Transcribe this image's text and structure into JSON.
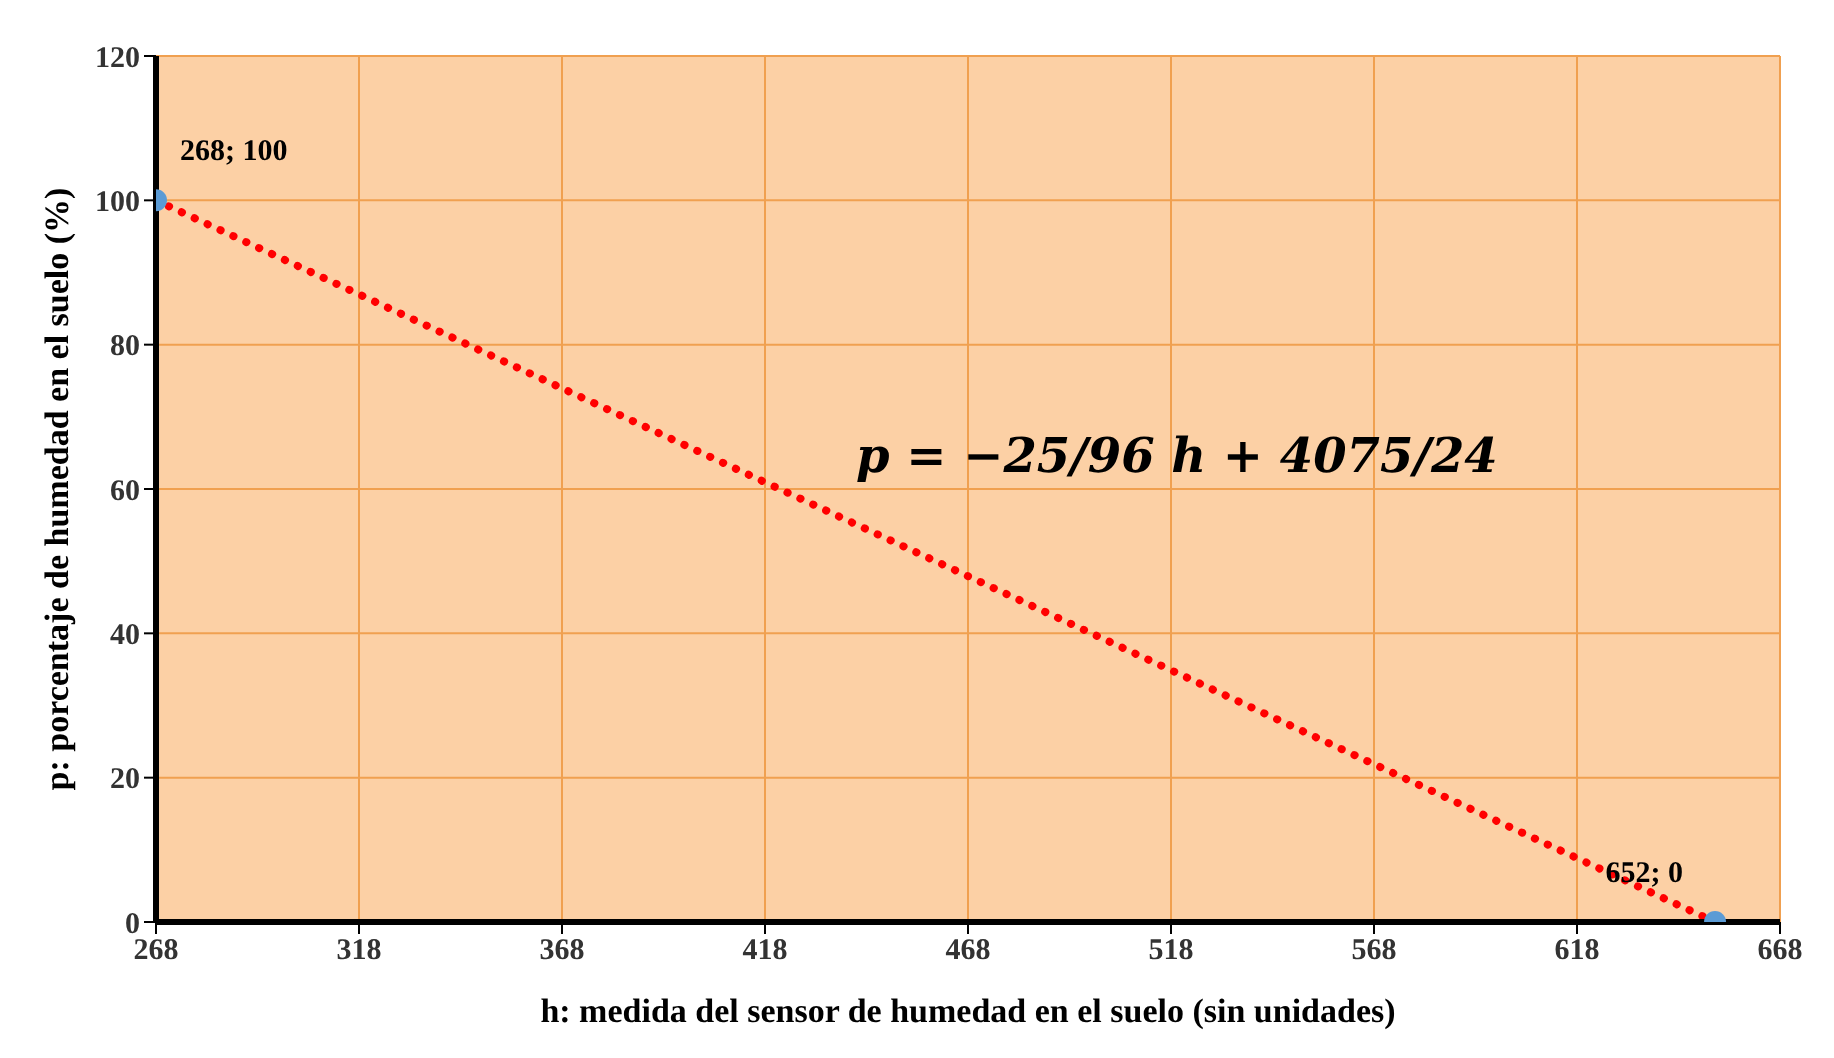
{
  "chart_data": {
    "type": "scatter",
    "xlabel": "h: medida del sensor de humedad en el suelo (sin unidades)",
    "ylabel": "p: porcentaje de humedad en el suelo (%)",
    "x": [
      268,
      652
    ],
    "xlim": [
      268,
      668
    ],
    "xticks": [
      268,
      318,
      368,
      418,
      468,
      518,
      568,
      618,
      668
    ],
    "ylim": [
      0,
      120
    ],
    "yticks": [
      0,
      20,
      40,
      60,
      80,
      100,
      120
    ],
    "series": [
      {
        "type": "line",
        "values": [
          100,
          0
        ],
        "color": "#ff0000",
        "line_style": "dotted",
        "marker": "none"
      },
      {
        "type": "scatter",
        "values": [
          100,
          0
        ],
        "color": "#5b9bd5",
        "marker": "circle",
        "value_labels": [
          "268; 100",
          "652; 0"
        ]
      }
    ],
    "annotations": [
      "p = −25/96 h + 4075/24"
    ],
    "grid": true
  }
}
